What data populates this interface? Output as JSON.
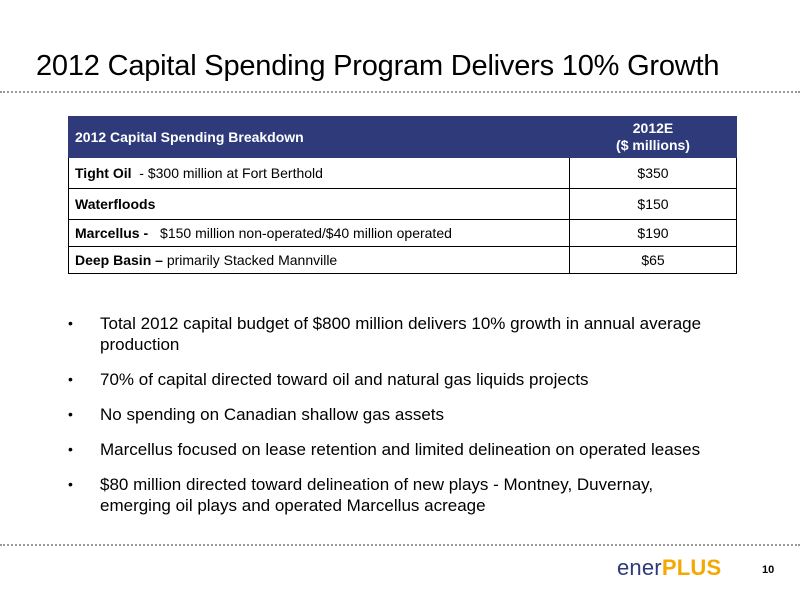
{
  "slide": {
    "title": "2012 Capital Spending Program Delivers 10% Growth",
    "page_number": "10"
  },
  "table": {
    "header": {
      "description": "2012 Capital Spending Breakdown",
      "value_line1": "2012E",
      "value_line2": "($ millions)"
    },
    "rows": [
      {
        "bold": "Tight Oil",
        "detail": "- $300 million at Fort Berthold",
        "value": "$350"
      },
      {
        "bold": "Waterfloods",
        "detail": "",
        "value": "$150"
      },
      {
        "bold": "Marcellus -",
        "detail": "$150 million non-operated/$40 million operated",
        "value": "$190"
      },
      {
        "bold": "Deep Basin –",
        "detail": "primarily Stacked Mannville",
        "value": "$65"
      }
    ]
  },
  "bullets": [
    {
      "marker": "•",
      "text": "Total 2012 capital budget of $800 million delivers 10% growth in annual average production"
    },
    {
      "marker": "•",
      "text": "70% of capital directed toward oil and natural gas liquids projects"
    },
    {
      "marker": "•",
      "text": "No spending on Canadian shallow gas assets"
    },
    {
      "marker": "•",
      "text": "Marcellus focused on lease retention and limited delineation on operated leases"
    },
    {
      "marker": "•",
      "text": "$80 million directed toward delineation of new plays -  Montney, Duvernay, emerging oil plays and operated Marcellus acreage"
    }
  ],
  "logo": {
    "part1": "ener",
    "part2": "PLUS",
    "color_primary": "#2e3a7a",
    "color_accent": "#f5a800"
  },
  "colors": {
    "table_header_bg": "#2e3a7a",
    "rule": "#9a9a9a"
  }
}
